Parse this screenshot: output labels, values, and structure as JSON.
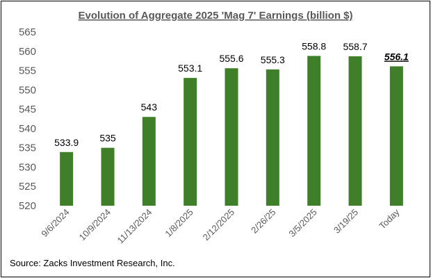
{
  "chart_data": {
    "type": "bar",
    "title": "Evolution of Aggregate 2025 'Mag 7' Earnings (billion $)",
    "categories": [
      "9/6/2024",
      "10/9/2024",
      "11/13/2024",
      "1/8/2025",
      "2/12/2025",
      "2/26/25",
      "3/5/2025",
      "3/19/25",
      "Today"
    ],
    "values": [
      533.9,
      535,
      543,
      553.1,
      555.6,
      555.3,
      558.8,
      558.7,
      556.1
    ],
    "value_labels": [
      "533.9",
      "535",
      "543",
      "553.1",
      "555.6",
      "555.3",
      "558.8",
      "558.7",
      "556.1"
    ],
    "emphasized_index": 8,
    "ylim": [
      520,
      565
    ],
    "yticks": [
      520,
      525,
      530,
      535,
      540,
      545,
      550,
      555,
      560,
      565
    ],
    "xlabel": "",
    "ylabel": "",
    "grid": false,
    "bar_color": "#3f7f2a"
  },
  "source": "Source: Zacks Investment Research, Inc."
}
